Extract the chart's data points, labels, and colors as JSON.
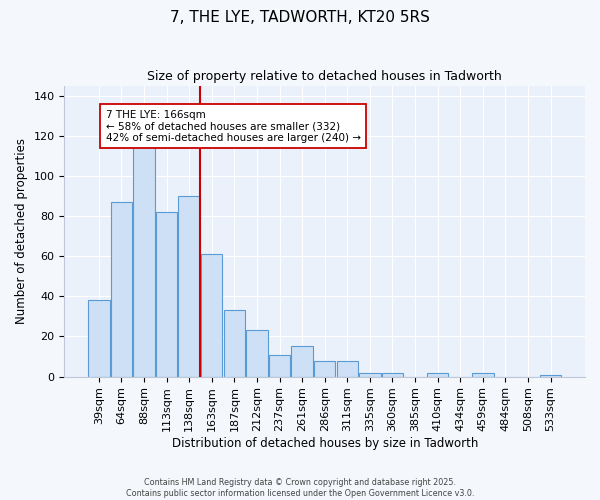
{
  "title": "7, THE LYE, TADWORTH, KT20 5RS",
  "subtitle": "Size of property relative to detached houses in Tadworth",
  "xlabel": "Distribution of detached houses by size in Tadworth",
  "ylabel": "Number of detached properties",
  "bin_labels": [
    "39sqm",
    "64sqm",
    "88sqm",
    "113sqm",
    "138sqm",
    "163sqm",
    "187sqm",
    "212sqm",
    "237sqm",
    "261sqm",
    "286sqm",
    "311sqm",
    "335sqm",
    "360sqm",
    "385sqm",
    "410sqm",
    "434sqm",
    "459sqm",
    "484sqm",
    "508sqm",
    "533sqm"
  ],
  "bar_values": [
    38,
    87,
    116,
    82,
    90,
    61,
    33,
    23,
    11,
    15,
    8,
    8,
    2,
    2,
    0,
    2,
    0,
    2,
    0,
    0,
    1
  ],
  "bar_color": "#cde0f5",
  "bar_edge_color": "#5b9bd5",
  "ylim": [
    0,
    145
  ],
  "yticks": [
    0,
    20,
    40,
    60,
    80,
    100,
    120,
    140
  ],
  "vline_color": "#cc0000",
  "annotation_title": "7 THE LYE: 166sqm",
  "annotation_line1": "← 58% of detached houses are smaller (332)",
  "annotation_line2": "42% of semi-detached houses are larger (240) →",
  "annotation_box_color": "#ffffff",
  "annotation_box_edge": "#cc0000",
  "footer1": "Contains HM Land Registry data © Crown copyright and database right 2025.",
  "footer2": "Contains public sector information licensed under the Open Government Licence v3.0.",
  "background_color": "#f4f7fb",
  "plot_background": "#eaf1fb",
  "grid_color": "#ffffff",
  "spine_color": "#c0c8d8"
}
